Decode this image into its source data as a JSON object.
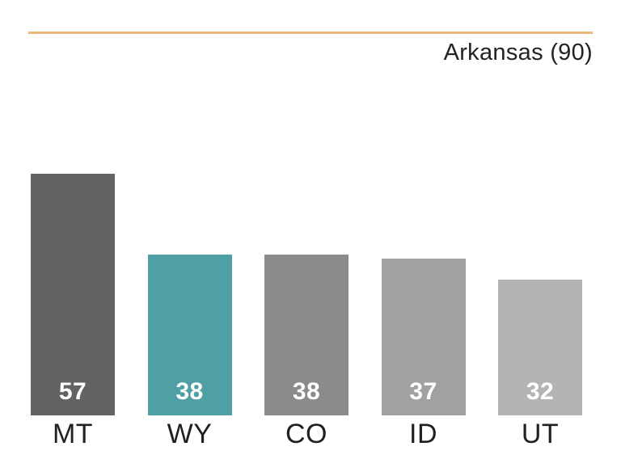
{
  "header": {
    "title_label": "Arkansas (90)",
    "accent_color": "#EBB97C"
  },
  "chart_data": {
    "type": "bar",
    "title": "Arkansas (90)",
    "categories": [
      "MT",
      "WY",
      "CO",
      "ID",
      "UT"
    ],
    "values": [
      57,
      38,
      38,
      37,
      32
    ],
    "bar_colors": [
      "#636366",
      "#4FA0A5",
      "#8B8B8D",
      "#A1A1A3",
      "#B4B4B6"
    ],
    "value_label_color": "#FFFFFF",
    "category_label_color": "#231F20",
    "xlabel": "",
    "ylabel": "",
    "ylim": [
      0,
      90
    ],
    "grid": false,
    "legend_position": "none",
    "reference_line": {
      "label": "Arkansas",
      "value": 90,
      "color": "#EBB97C",
      "position": "top"
    }
  }
}
